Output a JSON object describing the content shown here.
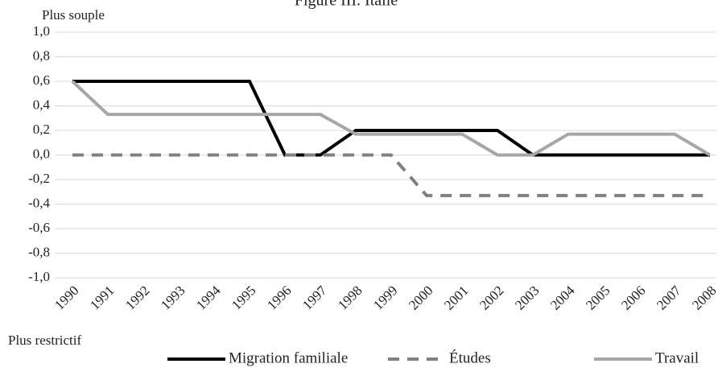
{
  "chart_data": {
    "type": "line",
    "title": "Figure III. Italie",
    "annotations": [
      "Plus souple",
      "Plus restrictif"
    ],
    "categories": [
      "1990",
      "1991",
      "1992",
      "1993",
      "1994",
      "1995",
      "1996",
      "1997",
      "1998",
      "1999",
      "2000",
      "2001",
      "2002",
      "2003",
      "2004",
      "2005",
      "2006",
      "2007",
      "2008"
    ],
    "series": [
      {
        "name": "Migration familiale",
        "color": "#000000",
        "dash": false,
        "values": [
          0.6,
          0.6,
          0.6,
          0.6,
          0.6,
          0.6,
          0,
          0,
          0.2,
          0.2,
          0.2,
          0.2,
          0.2,
          0,
          0,
          0,
          0,
          0,
          0
        ]
      },
      {
        "name": "Études",
        "color": "#808080",
        "dash": true,
        "values": [
          0,
          0,
          0,
          0,
          0,
          0,
          0,
          0,
          0,
          0,
          -0.33,
          -0.33,
          -0.33,
          -0.33,
          -0.33,
          -0.33,
          -0.33,
          -0.33,
          -0.33
        ]
      },
      {
        "name": "Travail",
        "color": "#a6a6a6",
        "dash": false,
        "values": [
          0.6,
          0.33,
          0.33,
          0.33,
          0.33,
          0.33,
          0.33,
          0.33,
          0.17,
          0.17,
          0.17,
          0.17,
          0,
          0,
          0.17,
          0.17,
          0.17,
          0.17,
          0
        ]
      }
    ],
    "ylim": [
      -1,
      1
    ],
    "yticks": [
      {
        "value": 1,
        "label": "1,0"
      },
      {
        "value": 0.8,
        "label": "0,8"
      },
      {
        "value": 0.6,
        "label": "0,6"
      },
      {
        "value": 0.4,
        "label": "0,4"
      },
      {
        "value": 0.2,
        "label": "0,2"
      },
      {
        "value": 0,
        "label": "0,0"
      },
      {
        "value": -0.2,
        "label": "-0,2"
      },
      {
        "value": -0.4,
        "label": "-0,4"
      },
      {
        "value": -0.6,
        "label": "-0,6"
      },
      {
        "value": -0.8,
        "label": "-0,8"
      },
      {
        "value": -1,
        "label": "-1,0"
      }
    ],
    "grid": true
  }
}
